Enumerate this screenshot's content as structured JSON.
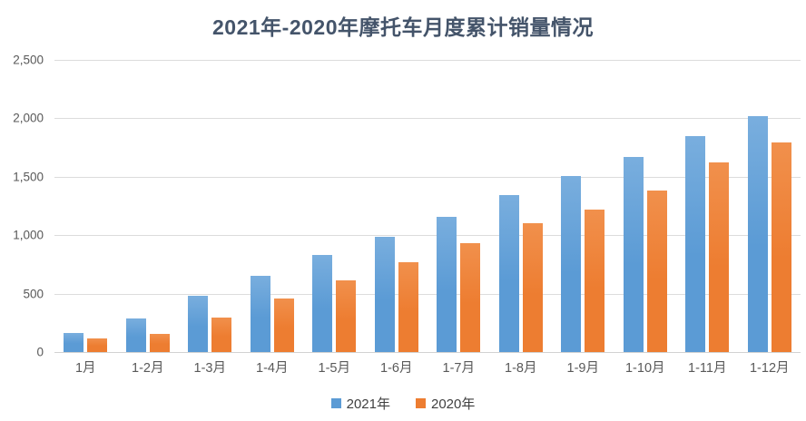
{
  "page": {
    "background_color": "#ffffff"
  },
  "chart_data": {
    "type": "bar",
    "title": "2021年-2020年摩托车月度累计销量情况",
    "title_color": "#44546a",
    "categories": [
      "1月",
      "1-2月",
      "1-3月",
      "1-4月",
      "1-5月",
      "1-6月",
      "1-7月",
      "1-8月",
      "1-9月",
      "1-10月",
      "1-11月",
      "1-12月"
    ],
    "series": [
      {
        "name": "2021年",
        "color": "#5b9bd5",
        "color_light": "#79aede",
        "values": [
          165,
          285,
          480,
          655,
          830,
          990,
          1160,
          1340,
          1510,
          1670,
          1850,
          2020
        ]
      },
      {
        "name": "2020年",
        "color": "#ed7d31",
        "color_light": "#f1904c",
        "values": [
          120,
          155,
          295,
          460,
          610,
          770,
          930,
          1100,
          1220,
          1380,
          1620,
          1790
        ]
      }
    ],
    "xlabel": "",
    "ylabel": "",
    "ylim": [
      0,
      2500
    ],
    "ytick_interval": 500,
    "ytick_labels": [
      "0",
      "500",
      "1,000",
      "1,500",
      "2,000",
      "2,500"
    ],
    "grid": true,
    "gridline_color": "#dcdcdc",
    "axis_label_color": "#595959",
    "legend_position": "bottom",
    "legend_text_color": "#404040"
  }
}
